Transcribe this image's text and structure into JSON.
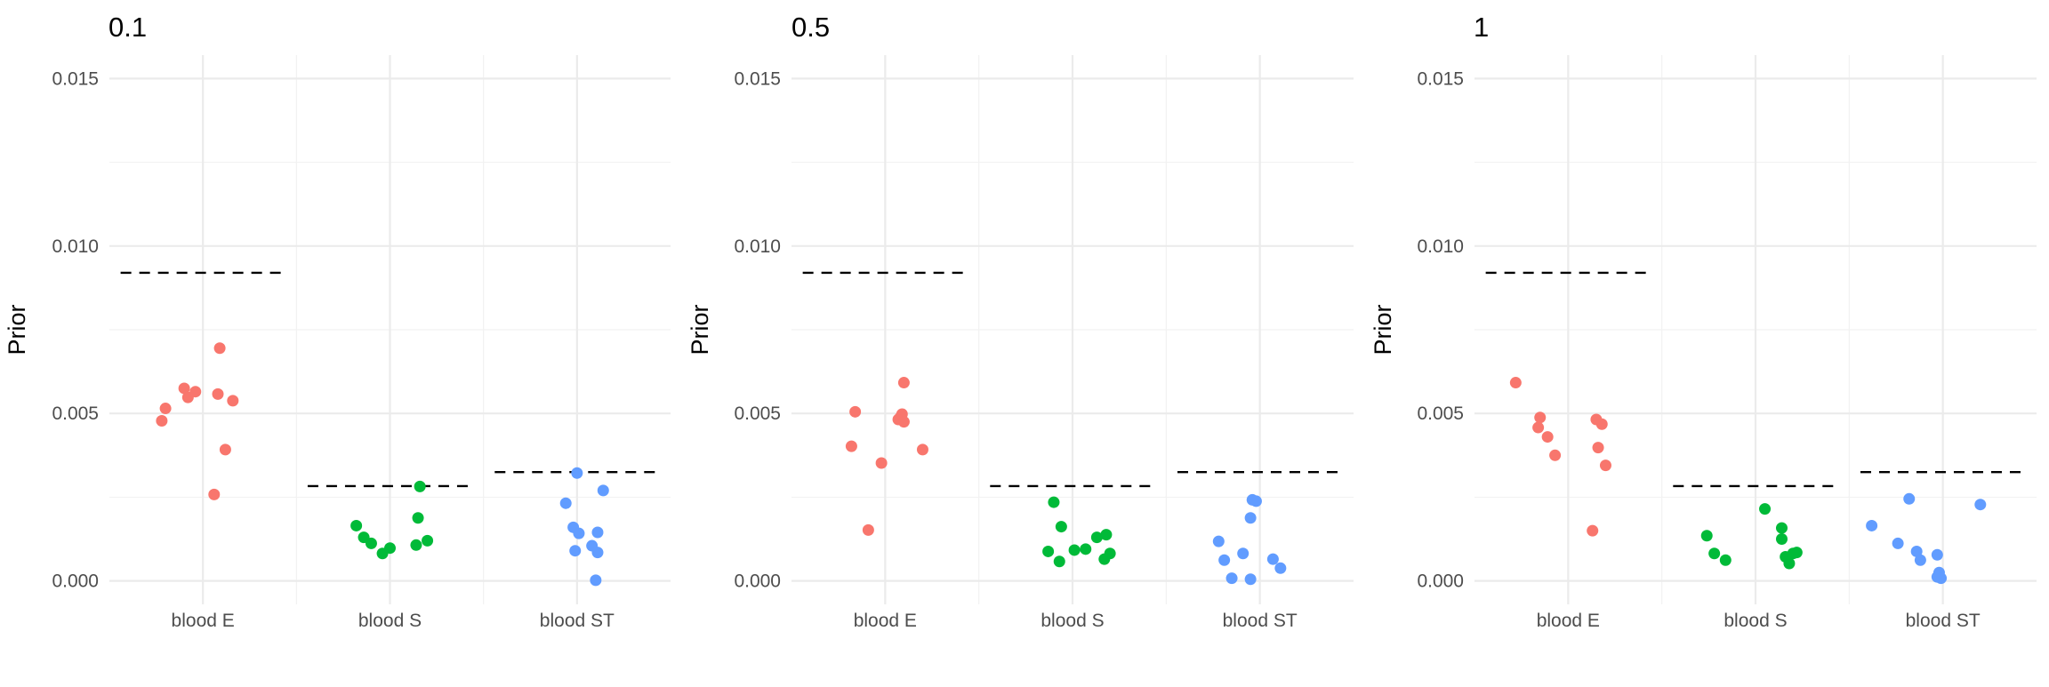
{
  "chart_data": [
    {
      "type": "scatter",
      "title": "0.1",
      "xlabel": "",
      "ylabel": "Prior",
      "categories": [
        "blood E",
        "blood S",
        "blood ST"
      ],
      "ylim": [
        -0.0007,
        0.0157
      ],
      "yticks": [
        0.0,
        0.005,
        0.01,
        0.015
      ],
      "ytick_labels": [
        "0.000",
        "0.005",
        "0.010",
        "0.015"
      ],
      "grid": true,
      "legend": "none",
      "reference_lines": [
        {
          "category": "blood E",
          "value": 0.0092
        },
        {
          "category": "blood S",
          "value": 0.00283
        },
        {
          "category": "blood ST",
          "value": 0.00325
        }
      ],
      "series": [
        {
          "name": "blood E",
          "color": "#F8766D",
          "points": [
            {
              "x": -0.22,
              "y": 0.00478
            },
            {
              "x": -0.2,
              "y": 0.00515
            },
            {
              "x": -0.1,
              "y": 0.00575
            },
            {
              "x": -0.08,
              "y": 0.00548
            },
            {
              "x": -0.04,
              "y": 0.00565
            },
            {
              "x": 0.06,
              "y": 0.00258
            },
            {
              "x": 0.08,
              "y": 0.00558
            },
            {
              "x": 0.09,
              "y": 0.00695
            },
            {
              "x": 0.12,
              "y": 0.00392
            },
            {
              "x": 0.16,
              "y": 0.00538
            }
          ]
        },
        {
          "name": "blood S",
          "color": "#00BA38",
          "points": [
            {
              "x": -0.18,
              "y": 0.00165
            },
            {
              "x": -0.14,
              "y": 0.0013
            },
            {
              "x": -0.1,
              "y": 0.00112
            },
            {
              "x": -0.04,
              "y": 0.00082
            },
            {
              "x": 0.0,
              "y": 0.00098
            },
            {
              "x": 0.14,
              "y": 0.00107
            },
            {
              "x": 0.15,
              "y": 0.00188
            },
            {
              "x": 0.16,
              "y": 0.00282
            },
            {
              "x": 0.2,
              "y": 0.0012
            }
          ]
        },
        {
          "name": "blood ST",
          "color": "#619CFF",
          "points": [
            {
              "x": -0.06,
              "y": 0.00232
            },
            {
              "x": -0.02,
              "y": 0.0016
            },
            {
              "x": -0.01,
              "y": 0.0009
            },
            {
              "x": 0.0,
              "y": 0.00322
            },
            {
              "x": 0.01,
              "y": 0.00142
            },
            {
              "x": 0.08,
              "y": 0.00105
            },
            {
              "x": 0.1,
              "y": 2e-05
            },
            {
              "x": 0.11,
              "y": 0.00145
            },
            {
              "x": 0.11,
              "y": 0.00085
            },
            {
              "x": 0.14,
              "y": 0.0027
            }
          ]
        }
      ]
    },
    {
      "type": "scatter",
      "title": "0.5",
      "xlabel": "",
      "ylabel": "Prior",
      "categories": [
        "blood E",
        "blood S",
        "blood ST"
      ],
      "ylim": [
        -0.0007,
        0.0157
      ],
      "yticks": [
        0.0,
        0.005,
        0.01,
        0.015
      ],
      "ytick_labels": [
        "0.000",
        "0.005",
        "0.010",
        "0.015"
      ],
      "grid": true,
      "legend": "none",
      "reference_lines": [
        {
          "category": "blood E",
          "value": 0.0092
        },
        {
          "category": "blood S",
          "value": 0.00283
        },
        {
          "category": "blood ST",
          "value": 0.00325
        }
      ],
      "series": [
        {
          "name": "blood E",
          "color": "#F8766D",
          "points": [
            {
              "x": -0.18,
              "y": 0.00402
            },
            {
              "x": -0.16,
              "y": 0.00505
            },
            {
              "x": -0.09,
              "y": 0.00152
            },
            {
              "x": -0.02,
              "y": 0.00352
            },
            {
              "x": 0.07,
              "y": 0.00482
            },
            {
              "x": 0.08,
              "y": 0.00488
            },
            {
              "x": 0.09,
              "y": 0.00498
            },
            {
              "x": 0.1,
              "y": 0.00475
            },
            {
              "x": 0.1,
              "y": 0.00592
            },
            {
              "x": 0.2,
              "y": 0.00392
            }
          ]
        },
        {
          "name": "blood S",
          "color": "#00BA38",
          "points": [
            {
              "x": -0.13,
              "y": 0.00088
            },
            {
              "x": -0.1,
              "y": 0.00235
            },
            {
              "x": -0.07,
              "y": 0.00058
            },
            {
              "x": -0.06,
              "y": 0.00162
            },
            {
              "x": 0.01,
              "y": 0.00092
            },
            {
              "x": 0.07,
              "y": 0.00095
            },
            {
              "x": 0.13,
              "y": 0.0013
            },
            {
              "x": 0.17,
              "y": 0.00065
            },
            {
              "x": 0.18,
              "y": 0.00138
            },
            {
              "x": 0.2,
              "y": 0.00082
            }
          ]
        },
        {
          "name": "blood ST",
          "color": "#619CFF",
          "points": [
            {
              "x": -0.22,
              "y": 0.00118
            },
            {
              "x": -0.19,
              "y": 0.00062
            },
            {
              "x": -0.15,
              "y": 8e-05
            },
            {
              "x": -0.09,
              "y": 0.00082
            },
            {
              "x": -0.05,
              "y": 5e-05
            },
            {
              "x": -0.05,
              "y": 0.00188
            },
            {
              "x": -0.04,
              "y": 0.00242
            },
            {
              "x": -0.02,
              "y": 0.00238
            },
            {
              "x": 0.07,
              "y": 0.00065
            },
            {
              "x": 0.11,
              "y": 0.00038
            }
          ]
        }
      ]
    },
    {
      "type": "scatter",
      "title": "1",
      "xlabel": "",
      "ylabel": "Prior",
      "categories": [
        "blood E",
        "blood S",
        "blood ST"
      ],
      "ylim": [
        -0.0007,
        0.0157
      ],
      "yticks": [
        0.0,
        0.005,
        0.01,
        0.015
      ],
      "ytick_labels": [
        "0.000",
        "0.005",
        "0.010",
        "0.015"
      ],
      "grid": true,
      "legend": "none",
      "reference_lines": [
        {
          "category": "blood E",
          "value": 0.0092
        },
        {
          "category": "blood S",
          "value": 0.00283
        },
        {
          "category": "blood ST",
          "value": 0.00325
        }
      ],
      "series": [
        {
          "name": "blood E",
          "color": "#F8766D",
          "points": [
            {
              "x": -0.28,
              "y": 0.00592
            },
            {
              "x": -0.16,
              "y": 0.00458
            },
            {
              "x": -0.15,
              "y": 0.00488
            },
            {
              "x": -0.11,
              "y": 0.0043
            },
            {
              "x": -0.07,
              "y": 0.00375
            },
            {
              "x": 0.13,
              "y": 0.0015
            },
            {
              "x": 0.15,
              "y": 0.00482
            },
            {
              "x": 0.16,
              "y": 0.00398
            },
            {
              "x": 0.18,
              "y": 0.00468
            },
            {
              "x": 0.2,
              "y": 0.00345
            }
          ]
        },
        {
          "name": "blood S",
          "color": "#00BA38",
          "points": [
            {
              "x": -0.26,
              "y": 0.00135
            },
            {
              "x": -0.22,
              "y": 0.00082
            },
            {
              "x": -0.16,
              "y": 0.00062
            },
            {
              "x": 0.05,
              "y": 0.00215
            },
            {
              "x": 0.14,
              "y": 0.00158
            },
            {
              "x": 0.14,
              "y": 0.00125
            },
            {
              "x": 0.16,
              "y": 0.00072
            },
            {
              "x": 0.18,
              "y": 0.00052
            },
            {
              "x": 0.2,
              "y": 0.00082
            },
            {
              "x": 0.22,
              "y": 0.00085
            }
          ]
        },
        {
          "name": "blood ST",
          "color": "#619CFF",
          "points": [
            {
              "x": -0.38,
              "y": 0.00165
            },
            {
              "x": -0.24,
              "y": 0.00112
            },
            {
              "x": -0.18,
              "y": 0.00245
            },
            {
              "x": -0.14,
              "y": 0.00088
            },
            {
              "x": -0.12,
              "y": 0.00062
            },
            {
              "x": -0.03,
              "y": 0.00078
            },
            {
              "x": -0.03,
              "y": 0.00012
            },
            {
              "x": -0.02,
              "y": 0.00025
            },
            {
              "x": -0.01,
              "y": 8e-05
            },
            {
              "x": 0.2,
              "y": 0.00228
            }
          ]
        }
      ]
    }
  ]
}
